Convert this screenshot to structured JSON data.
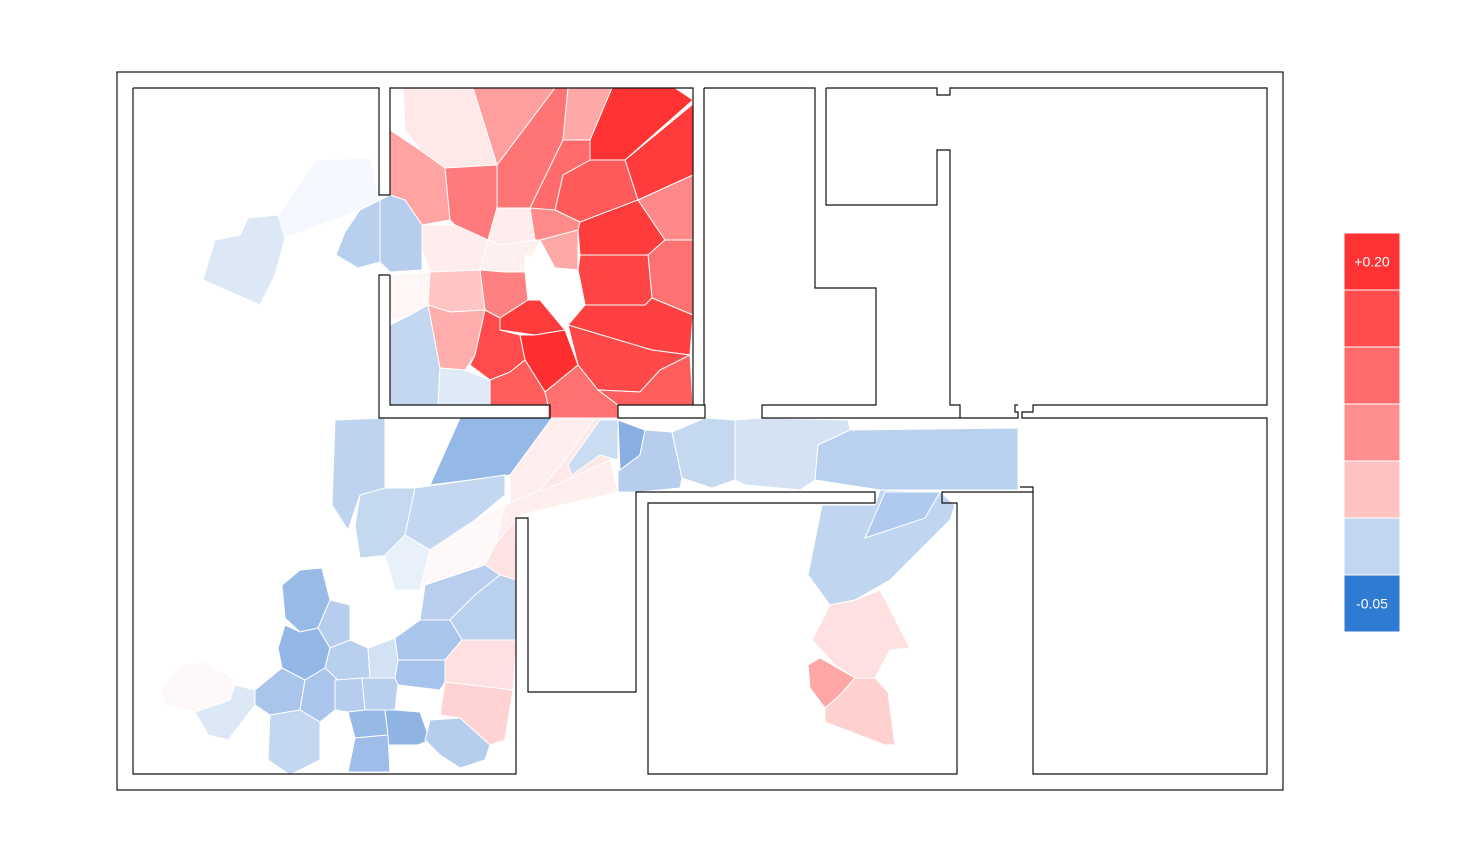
{
  "legend": {
    "max_label": "+0.20",
    "min_label": "-0.05",
    "max_value": 0.2,
    "min_value": -0.05,
    "steps": [
      {
        "color": "#ff3333"
      },
      {
        "color": "#ff4d4d"
      },
      {
        "color": "#ff6b6b"
      },
      {
        "color": "#ff8f8f"
      },
      {
        "color": "#ffc2c2"
      },
      {
        "color": "#c1d6f0"
      },
      {
        "color": "#2f7ad2"
      }
    ]
  },
  "colors": {
    "wall": "#111111",
    "background": "#ffffff",
    "cell_border": "#ffffff"
  }
}
